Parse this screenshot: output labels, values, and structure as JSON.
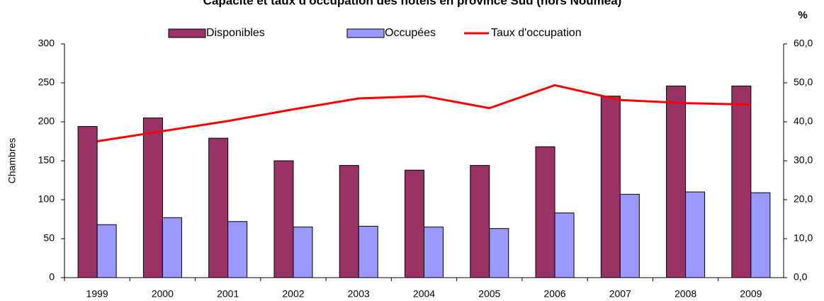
{
  "chart_data": {
    "type": "bar",
    "title": "Capacité et taux d'occupation des hôtels en province Sud (hors Nouméa)",
    "y_label": "Chambres",
    "y2_label": "%",
    "categories": [
      "1999",
      "2000",
      "2001",
      "2002",
      "2003",
      "2004",
      "2005",
      "2006",
      "2007",
      "2008",
      "2009"
    ],
    "series": [
      {
        "name": "Disponibles",
        "color": "#993366",
        "values": [
          194,
          205,
          179,
          150,
          144,
          138,
          144,
          168,
          233,
          246,
          246
        ]
      },
      {
        "name": "Occupées",
        "color": "#9999ff",
        "values": [
          68,
          77,
          72,
          65,
          66,
          65,
          63,
          83,
          107,
          110,
          109
        ]
      },
      {
        "name": "Taux d'occupation",
        "color": "#ff0000",
        "type": "line",
        "axis": "y2",
        "values": [
          35.0,
          37.6,
          40.2,
          43.2,
          46.0,
          46.6,
          43.5,
          49.4,
          45.6,
          44.8,
          44.4
        ]
      }
    ],
    "ylim": [
      0,
      300
    ],
    "yticks": [
      0,
      50,
      100,
      150,
      200,
      250,
      300
    ],
    "y2lim": [
      0,
      60
    ],
    "y2ticks": [
      {
        "value": 0,
        "label": "0,0"
      },
      {
        "value": 10,
        "label": "10,0"
      },
      {
        "value": 20,
        "label": "20,0"
      },
      {
        "value": 30,
        "label": "30,0"
      },
      {
        "value": 40,
        "label": "40,0"
      },
      {
        "value": 50,
        "label": "50,0"
      },
      {
        "value": 60,
        "label": "60,0"
      }
    ],
    "grid": false,
    "legend": "top"
  }
}
